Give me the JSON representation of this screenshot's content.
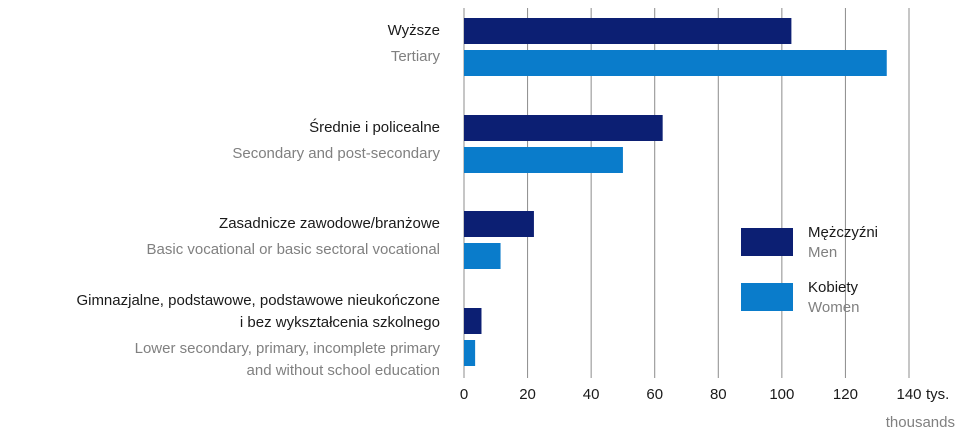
{
  "chart_data": {
    "type": "barh",
    "categories": [
      "Wyższe",
      "Średnie i policealne",
      "Zasadnicze zawodowe/branżowe",
      "Gimnazjalne, podstawowe, podstawowe nieukończone\ni bez wykształcenia szkolnego"
    ],
    "categories_en": [
      "Tertiary",
      "Secondary and post-secondary",
      "Basic vocational or basic sectoral vocational",
      "Lower secondary, primary, incomplete primary\nand without school education"
    ],
    "series": [
      {
        "name": "Mężczyźni",
        "name_en": "Men",
        "color": "#0c1f73",
        "values": [
          103,
          62.5,
          22,
          5.5
        ]
      },
      {
        "name": "Kobiety",
        "name_en": "Women",
        "color": "#0a7ccb",
        "values": [
          133,
          50,
          11.5,
          3.5
        ]
      }
    ],
    "xlabel": "tys.",
    "xlabel_en": "thousands",
    "xlim": [
      0,
      140
    ],
    "xticks": [
      0,
      20,
      40,
      60,
      80,
      100,
      120,
      140
    ],
    "grid": true,
    "legend": "right"
  }
}
